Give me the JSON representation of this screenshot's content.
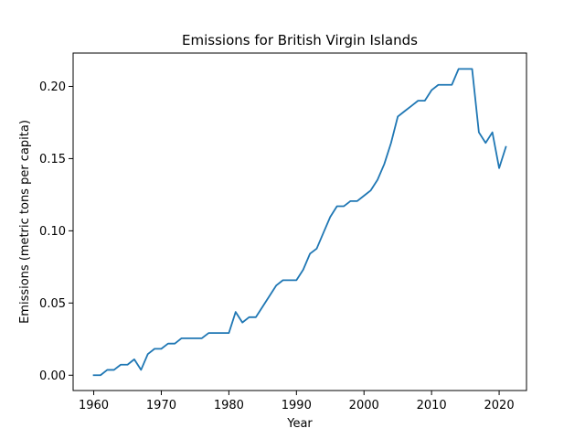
{
  "chart_data": {
    "type": "line",
    "title": "Emissions for British Virgin Islands",
    "xlabel": "Year",
    "ylabel": "Emissions (metric tons per capita)",
    "xlim": [
      1956.95,
      2024.05
    ],
    "ylim": [
      -0.0106,
      0.2231
    ],
    "xticks": [
      1960,
      1970,
      1980,
      1990,
      2000,
      2010,
      2020
    ],
    "xtick_labels": [
      "1960",
      "1970",
      "1980",
      "1990",
      "2000",
      "2010",
      "2020"
    ],
    "yticks": [
      0.0,
      0.05,
      0.1,
      0.15,
      0.2
    ],
    "ytick_labels": [
      "0.00",
      "0.05",
      "0.10",
      "0.15",
      "0.20"
    ],
    "grid": false,
    "series": [
      {
        "color": "#1f77b4",
        "x": [
          1960,
          1961,
          1962,
          1963,
          1964,
          1965,
          1966,
          1967,
          1968,
          1969,
          1970,
          1971,
          1972,
          1973,
          1974,
          1975,
          1976,
          1977,
          1978,
          1979,
          1980,
          1981,
          1982,
          1983,
          1984,
          1985,
          1986,
          1987,
          1988,
          1989,
          1990,
          1991,
          1992,
          1993,
          1994,
          1995,
          1996,
          1997,
          1998,
          1999,
          2000,
          2001,
          2002,
          2003,
          2004,
          2005,
          2006,
          2007,
          2008,
          2009,
          2010,
          2011,
          2012,
          2013,
          2014,
          2015,
          2016,
          2017,
          2018,
          2019,
          2020,
          2021
        ],
        "y": [
          0.0,
          0.0,
          0.0037,
          0.0037,
          0.0073,
          0.0073,
          0.011,
          0.0037,
          0.0146,
          0.0183,
          0.0183,
          0.0219,
          0.0219,
          0.0256,
          0.0256,
          0.0256,
          0.0256,
          0.0292,
          0.0292,
          0.0292,
          0.0292,
          0.0438,
          0.0365,
          0.0402,
          0.0402,
          0.0475,
          0.0548,
          0.0621,
          0.0658,
          0.0658,
          0.0658,
          0.0731,
          0.0841,
          0.0877,
          0.0987,
          0.1096,
          0.117,
          0.117,
          0.1206,
          0.1206,
          0.1243,
          0.128,
          0.1353,
          0.1462,
          0.1608,
          0.1791,
          0.1828,
          0.1864,
          0.1901,
          0.1901,
          0.1974,
          0.2011,
          0.2011,
          0.2011,
          0.2121,
          0.2121,
          0.2121,
          0.1682,
          0.1609,
          0.1682,
          0.1434,
          0.1581
        ]
      }
    ]
  }
}
